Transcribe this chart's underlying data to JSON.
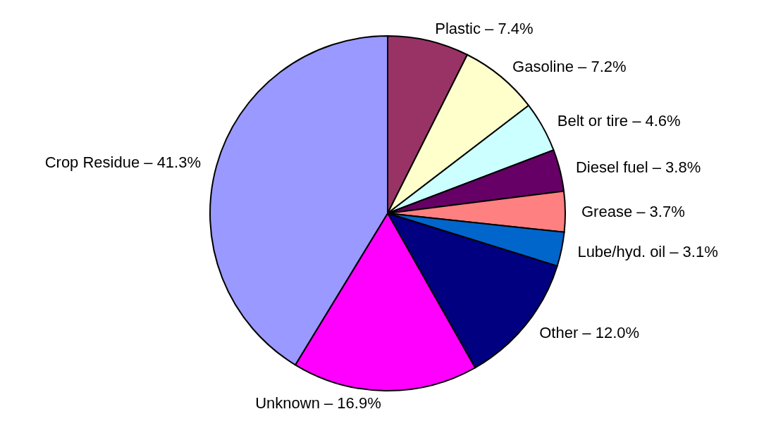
{
  "chart_data": {
    "type": "pie",
    "categories": [
      "Plastic – 7.4%",
      "Gasoline – 7.2%",
      "Belt or tire – 4.6%",
      "Diesel fuel – 3.8%",
      "Grease – 3.7%",
      "Lube/hyd. oil – 3.1%",
      "Other – 12.0%",
      "Unknown – 16.9%",
      "Crop Residue – 41.3%"
    ],
    "values": [
      7.4,
      7.2,
      4.6,
      3.8,
      3.7,
      3.1,
      12.0,
      16.9,
      41.3
    ],
    "colors": [
      "#993366",
      "#ffffcc",
      "#ccffff",
      "#660066",
      "#ff8080",
      "#0066cc",
      "#000080",
      "#ff00ff",
      "#9999ff"
    ],
    "legend": false
  }
}
